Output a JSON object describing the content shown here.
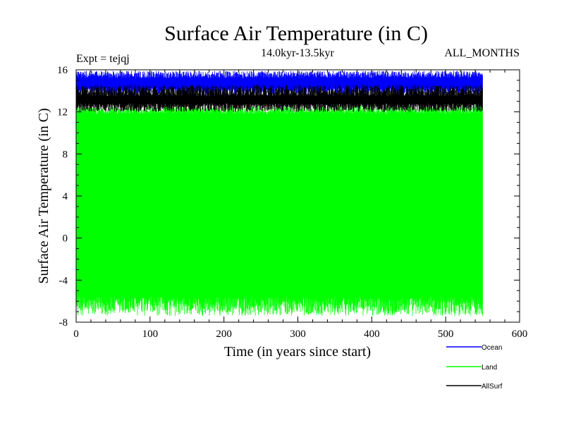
{
  "chart_data": {
    "type": "line",
    "title": "Surface Air Temperature (in C)",
    "subtitle_left": "Expt = tejqj",
    "subtitle_center": "14.0kyr-13.5kyr",
    "subtitle_right": "ALL_MONTHS",
    "xlabel": "Time (in years since start)",
    "ylabel": "Surface Air Temperature (in C)",
    "xlim": [
      0,
      600
    ],
    "ylim": [
      -8,
      16
    ],
    "x_ticks": [
      0,
      100,
      200,
      300,
      400,
      500,
      600
    ],
    "y_ticks": [
      -8,
      -4,
      0,
      4,
      8,
      12,
      16
    ],
    "x_ticks_text": [
      "0",
      "100",
      "200",
      "300",
      "400",
      "500",
      "600"
    ],
    "y_ticks_text": [
      "-8",
      "-4",
      "0",
      "4",
      "8",
      "12",
      "16"
    ],
    "grid": false,
    "legend_position": "bottom-right",
    "series": [
      {
        "name": "Ocean",
        "color": "#0000ff",
        "x_range": [
          0,
          550
        ],
        "low": [
          13.6,
          14.3
        ],
        "high": [
          15.2,
          15.9
        ]
      },
      {
        "name": "Land",
        "color": "#00ff00",
        "x_range": [
          0,
          550
        ],
        "low": [
          -7.4,
          -5.6
        ],
        "high": [
          11.8,
          12.6
        ]
      },
      {
        "name": "AllSurf",
        "color": "#000000",
        "x_range": [
          0,
          550
        ],
        "low": [
          12.0,
          12.8
        ],
        "high": [
          13.5,
          14.6
        ]
      }
    ]
  }
}
